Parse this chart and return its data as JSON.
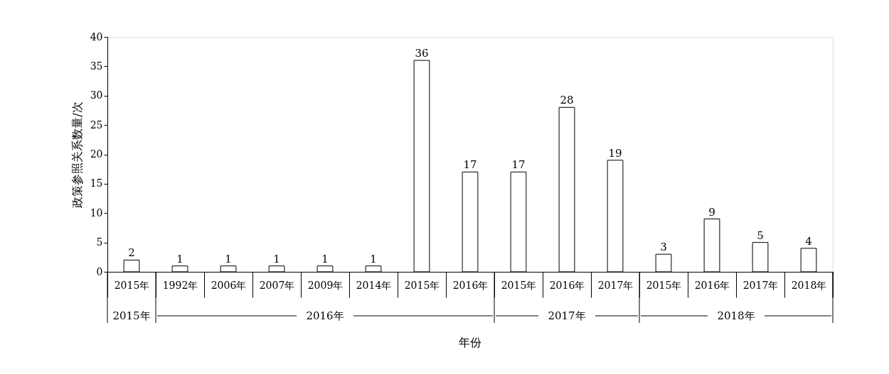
{
  "chart_data": {
    "type": "bar",
    "ylabel": "政策参照关系数量/次",
    "xlabel": "年份",
    "categories": [
      "2015年",
      "1992年",
      "2006年",
      "2007年",
      "2009年",
      "2014年",
      "2015年",
      "2016年",
      "2015年",
      "2016年",
      "2017年",
      "2015年",
      "2016年",
      "2017年",
      "2018年"
    ],
    "values": [
      2,
      1,
      1,
      1,
      1,
      1,
      36,
      17,
      17,
      28,
      19,
      3,
      9,
      5,
      4
    ],
    "color": "#ffffff",
    "ylim": [
      0,
      40
    ],
    "yticks": [
      0,
      5,
      10,
      15,
      20,
      25,
      30,
      35,
      40
    ],
    "data_labels": true,
    "grid": false,
    "annotations": [
      "2015年",
      "2016年",
      "2017年",
      "2018年"
    ]
  }
}
